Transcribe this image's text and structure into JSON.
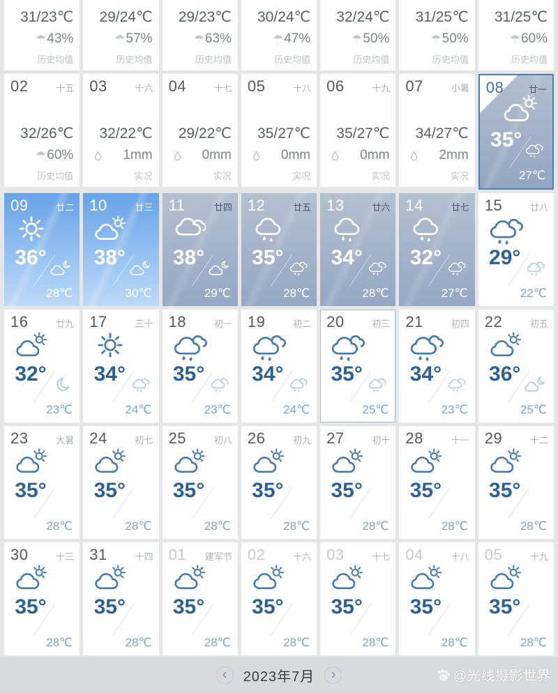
{
  "colors": {
    "accent_blue": "#2d6195",
    "icon_blue": "#4a7caa",
    "night_blue": "#7aa6c9",
    "sunny_top": "#68a2e7",
    "sunny_bottom": "#bcd8f7",
    "overcast_top": "#b5c1d1",
    "overcast_bottom": "#95a8c3",
    "today_border": "#4e7cab",
    "selected_border": "#a3bccc",
    "footer_bg": "#d9dadc"
  },
  "icons": {
    "umbrella_glyph": "☂"
  },
  "calendar": {
    "cells": [
      {
        "cut": true,
        "type": "history",
        "range": "31/23℃",
        "percent": "43%",
        "caption": "历史均值"
      },
      {
        "cut": true,
        "type": "history",
        "range": "29/24℃",
        "percent": "57%",
        "caption": "历史均值"
      },
      {
        "cut": true,
        "type": "history",
        "range": "29/23℃",
        "percent": "63%",
        "caption": "历史均值"
      },
      {
        "cut": true,
        "type": "history",
        "range": "30/24℃",
        "percent": "47%",
        "caption": "历史均值"
      },
      {
        "cut": true,
        "type": "history",
        "range": "32/24℃",
        "percent": "50%",
        "caption": "历史均值"
      },
      {
        "cut": true,
        "type": "history",
        "range": "31/25℃",
        "percent": "50%",
        "caption": "历史均值"
      },
      {
        "cut": true,
        "type": "history",
        "range": "31/25℃",
        "percent": "60%",
        "caption": "历史均值"
      },
      {
        "date": "02",
        "lunar": "十五",
        "type": "history",
        "range": "32/26℃",
        "percent": "60%",
        "caption": "历史均值"
      },
      {
        "date": "03",
        "lunar": "十六",
        "type": "actual",
        "range": "32/22℃",
        "amount": "1mm",
        "caption": "实况"
      },
      {
        "date": "04",
        "lunar": "十七",
        "type": "actual",
        "range": "29/22℃",
        "amount": "0mm",
        "caption": "实况"
      },
      {
        "date": "05",
        "lunar": "十八",
        "type": "actual",
        "range": "35/27℃",
        "amount": "0mm",
        "caption": "实况"
      },
      {
        "date": "06",
        "lunar": "十九",
        "type": "actual",
        "range": "35/27℃",
        "amount": "0mm",
        "caption": "实况"
      },
      {
        "date": "07",
        "lunar": "小暑",
        "type": "actual",
        "range": "34/27℃",
        "amount": "2mm",
        "caption": "实况"
      },
      {
        "date": "08",
        "lunar": "廿一",
        "type": "forecast",
        "today": true,
        "bg": "today",
        "day_icon": "partly-sunny",
        "day_temp": "35°",
        "night_icon": "rain-small",
        "night_temp": "27℃"
      },
      {
        "date": "09",
        "lunar": "廿二",
        "type": "forecast",
        "bg": "sunny",
        "day_icon": "sun",
        "day_temp": "36°",
        "night_icon": "cloud-moon",
        "night_temp": "28℃"
      },
      {
        "date": "10",
        "lunar": "廿三",
        "type": "forecast",
        "bg": "sunny",
        "day_icon": "partly-sunny",
        "day_temp": "38°",
        "night_icon": "cloud-moon",
        "night_temp": "30℃"
      },
      {
        "date": "11",
        "lunar": "廿四",
        "type": "forecast",
        "bg": "overcast",
        "day_icon": "cloudy",
        "day_temp": "38°",
        "night_icon": "cloud-moon",
        "night_temp": "29℃"
      },
      {
        "date": "12",
        "lunar": "廿五",
        "type": "forecast",
        "bg": "overcast",
        "day_icon": "rain",
        "day_temp": "35°",
        "night_icon": "rain-small",
        "night_temp": "28℃"
      },
      {
        "date": "13",
        "lunar": "廿六",
        "type": "forecast",
        "bg": "overcast",
        "day_icon": "rain",
        "day_temp": "34°",
        "night_icon": "rain-small",
        "night_temp": "28℃"
      },
      {
        "date": "14",
        "lunar": "廿七",
        "type": "forecast",
        "bg": "overcast",
        "day_icon": "rain",
        "day_temp": "32°",
        "night_icon": "rain-small",
        "night_temp": "27℃"
      },
      {
        "date": "15",
        "lunar": "廿八",
        "type": "forecast",
        "day_icon": "rain2",
        "day_temp": "29°",
        "night_icon": "rain-small",
        "night_temp": "22℃"
      },
      {
        "date": "16",
        "lunar": "廿九",
        "type": "forecast",
        "day_icon": "partly-sunny",
        "day_temp": "32°",
        "night_icon": "moon",
        "night_temp": "23℃"
      },
      {
        "date": "17",
        "lunar": "三十",
        "type": "forecast",
        "day_icon": "sun",
        "day_temp": "34°",
        "night_icon": "rain-small",
        "night_temp": "24℃"
      },
      {
        "date": "18",
        "lunar": "初一",
        "type": "forecast",
        "day_icon": "rain2",
        "day_temp": "35°",
        "night_icon": "rain-small",
        "night_temp": "23℃"
      },
      {
        "date": "19",
        "lunar": "初二",
        "type": "forecast",
        "day_icon": "rain2",
        "day_temp": "34°",
        "night_icon": "rain-small",
        "night_temp": "24℃"
      },
      {
        "date": "20",
        "lunar": "初三",
        "type": "forecast",
        "selected": true,
        "day_icon": "rain2",
        "day_temp": "35°",
        "night_icon": "rain-small",
        "night_temp": "25℃"
      },
      {
        "date": "21",
        "lunar": "初四",
        "type": "forecast",
        "day_icon": "rain2",
        "day_temp": "34°",
        "night_icon": "rain-small",
        "night_temp": "23℃"
      },
      {
        "date": "22",
        "lunar": "初五",
        "type": "forecast",
        "day_icon": "partly-sunny",
        "day_temp": "36°",
        "night_icon": "cloud-moon",
        "night_temp": "25℃"
      },
      {
        "date": "23",
        "lunar": "大暑",
        "type": "forecast",
        "day_icon": "partly-sunny",
        "day_temp": "35°",
        "night_temp": "28℃"
      },
      {
        "date": "24",
        "lunar": "初七",
        "type": "forecast",
        "day_icon": "partly-sunny",
        "day_temp": "35°",
        "night_temp": "28℃"
      },
      {
        "date": "25",
        "lunar": "初八",
        "type": "forecast",
        "day_icon": "partly-sunny",
        "day_temp": "35°",
        "night_temp": "28℃"
      },
      {
        "date": "26",
        "lunar": "初九",
        "type": "forecast",
        "day_icon": "partly-sunny",
        "day_temp": "35°",
        "night_temp": "28℃"
      },
      {
        "date": "27",
        "lunar": "初十",
        "type": "forecast",
        "day_icon": "partly-sunny",
        "day_temp": "35°",
        "night_temp": "28℃"
      },
      {
        "date": "28",
        "lunar": "十一",
        "type": "forecast",
        "day_icon": "partly-sunny",
        "day_temp": "35°",
        "night_temp": "28℃"
      },
      {
        "date": "29",
        "lunar": "十二",
        "type": "forecast",
        "day_icon": "partly-sunny",
        "day_temp": "35°",
        "night_temp": "28℃"
      },
      {
        "date": "30",
        "lunar": "十三",
        "type": "forecast",
        "day_icon": "partly-sunny",
        "day_temp": "35°",
        "night_temp": "28℃"
      },
      {
        "date": "31",
        "lunar": "十四",
        "type": "forecast",
        "day_icon": "partly-sunny",
        "day_temp": "35°",
        "night_temp": "28℃"
      },
      {
        "date": "01",
        "lunar": "建军节",
        "type": "forecast",
        "muted": true,
        "day_icon": "partly-sunny",
        "day_temp": "35°",
        "night_temp": "28℃"
      },
      {
        "date": "02",
        "lunar": "十六",
        "type": "forecast",
        "muted": true,
        "day_icon": "partly-sunny",
        "day_temp": "35°",
        "night_temp": "28℃"
      },
      {
        "date": "03",
        "lunar": "十七",
        "type": "forecast",
        "muted": true,
        "day_icon": "partly-sunny",
        "day_temp": "35°",
        "night_temp": "28℃"
      },
      {
        "date": "04",
        "lunar": "十八",
        "type": "forecast",
        "muted": true,
        "day_icon": "partly-sunny",
        "day_temp": "35°",
        "night_temp": "28℃"
      },
      {
        "date": "05",
        "lunar": "十九",
        "type": "forecast",
        "muted": true,
        "day_icon": "partly-sunny",
        "day_temp": "35°",
        "night_temp": "28℃"
      }
    ]
  },
  "footer": {
    "month_label": "2023年7月",
    "watermark": "@光线摄影世界"
  }
}
